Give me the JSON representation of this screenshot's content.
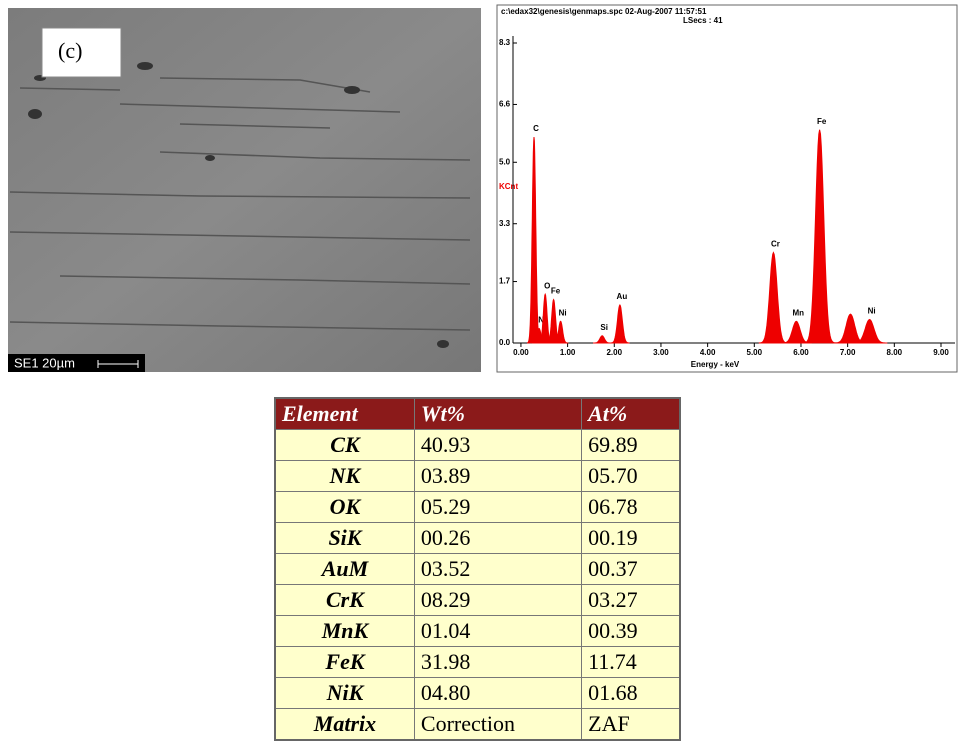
{
  "sem_image": {
    "panel_label": "(c)",
    "scale_label": "SE1  20µm"
  },
  "chart_data": {
    "type": "spectrum",
    "file_header": "c:\\edax32\\genesis\\genmaps.spc  02-Aug-2007 11:57:51",
    "live_seconds": "LSecs : 41",
    "x_label": "Energy - keV",
    "y_label": "KCnt",
    "color": "#ee0000",
    "xlim": [
      -0.17,
      9.3
    ],
    "ylim": [
      0,
      8.3
    ],
    "xticks": [
      {
        "value": 0,
        "label": "0.00"
      },
      {
        "value": 1,
        "label": "1.00"
      },
      {
        "value": 2,
        "label": "2.00"
      },
      {
        "value": 3,
        "label": "3.00"
      },
      {
        "value": 4,
        "label": "4.00"
      },
      {
        "value": 5,
        "label": "5.00"
      },
      {
        "value": 6,
        "label": "6.00"
      },
      {
        "value": 7,
        "label": "7.00"
      },
      {
        "value": 8,
        "label": "8.00"
      },
      {
        "value": 9,
        "label": "9.00"
      }
    ],
    "yticks": [
      {
        "value": 0,
        "label": "0.0"
      },
      1.7,
      3.3,
      {
        "value": 5,
        "label": "5.0"
      },
      6.6,
      8.3
    ],
    "peaks": {
      "labels": [
        "C",
        "N",
        "O",
        "Fe",
        "Ni",
        "Si",
        "Au",
        "Cr",
        "Mn",
        "Fe",
        null,
        "Ni"
      ],
      "x": [
        0.28,
        0.39,
        0.52,
        0.7,
        0.85,
        1.74,
        2.12,
        5.41,
        5.9,
        6.4,
        7.06,
        7.47
      ],
      "values": [
        5.7,
        0.4,
        1.35,
        1.2,
        0.6,
        0.2,
        1.05,
        2.5,
        0.6,
        5.9,
        0.8,
        0.65
      ]
    }
  },
  "table": {
    "header": [
      "Element",
      "Wt%",
      "At%"
    ],
    "rows": [
      [
        "CK",
        "40.93",
        "69.89"
      ],
      [
        "NK",
        "03.89",
        "05.70"
      ],
      [
        "OK",
        "05.29",
        "06.78"
      ],
      [
        "SiK",
        "00.26",
        "00.19"
      ],
      [
        "AuM",
        "03.52",
        "00.37"
      ],
      [
        "CrK",
        "08.29",
        "03.27"
      ],
      [
        "MnK",
        "01.04",
        "00.39"
      ],
      [
        "FeK",
        "31.98",
        "11.74"
      ],
      [
        "NiK",
        "04.80",
        "01.68"
      ],
      [
        "Matrix",
        "Correction",
        "ZAF"
      ]
    ]
  }
}
